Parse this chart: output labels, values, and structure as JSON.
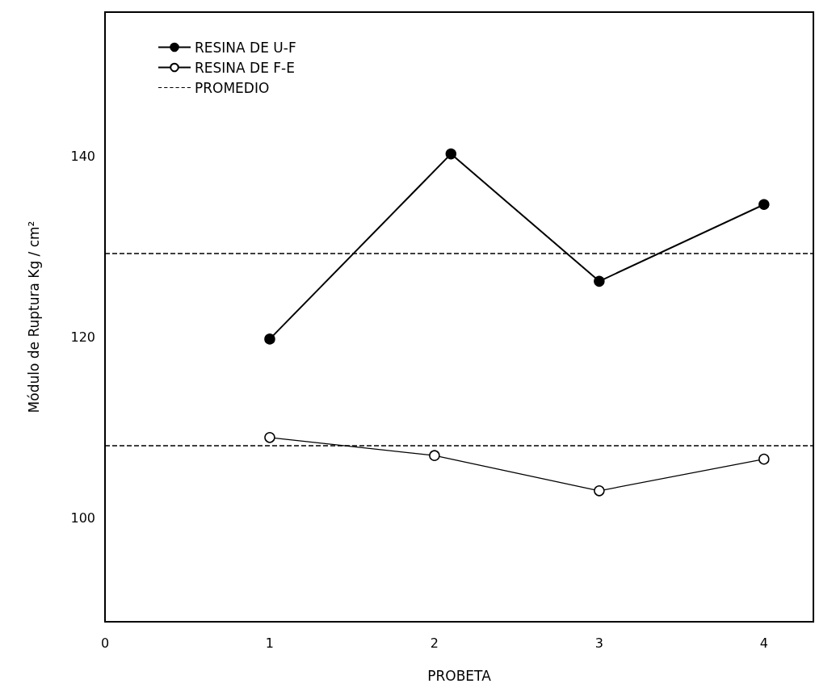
{
  "chart_data": {
    "type": "line",
    "xlabel": "PROBETA",
    "ylabel": "Módulo de Ruptura Kg / cm²",
    "series": [
      {
        "name": "RESINA DE U-F",
        "color": "#000000",
        "x": [
          1,
          2.1,
          3,
          4
        ],
        "values": [
          119.8,
          140.3,
          126.2,
          134.7
        ]
      },
      {
        "name": "RESINA DE F-E",
        "color": "#000000",
        "x": [
          1,
          2,
          3,
          4
        ],
        "values": [
          108.9,
          106.9,
          103.0,
          106.5
        ]
      }
    ],
    "ref_lines": [
      {
        "axis": "y",
        "value": 129.3,
        "label": "PROMEDIO",
        "line_style": "dashed"
      },
      {
        "axis": "y",
        "value": 108.0,
        "line_style": "dashed"
      }
    ],
    "xlim": [
      0,
      4.3
    ],
    "xticks": [
      0,
      1,
      2,
      3,
      4
    ],
    "ylim": [
      88.5,
      156
    ],
    "yticks": [
      100,
      120,
      140
    ],
    "grid": false,
    "legend": "top left",
    "marker": "circle",
    "line_style": "solid"
  }
}
